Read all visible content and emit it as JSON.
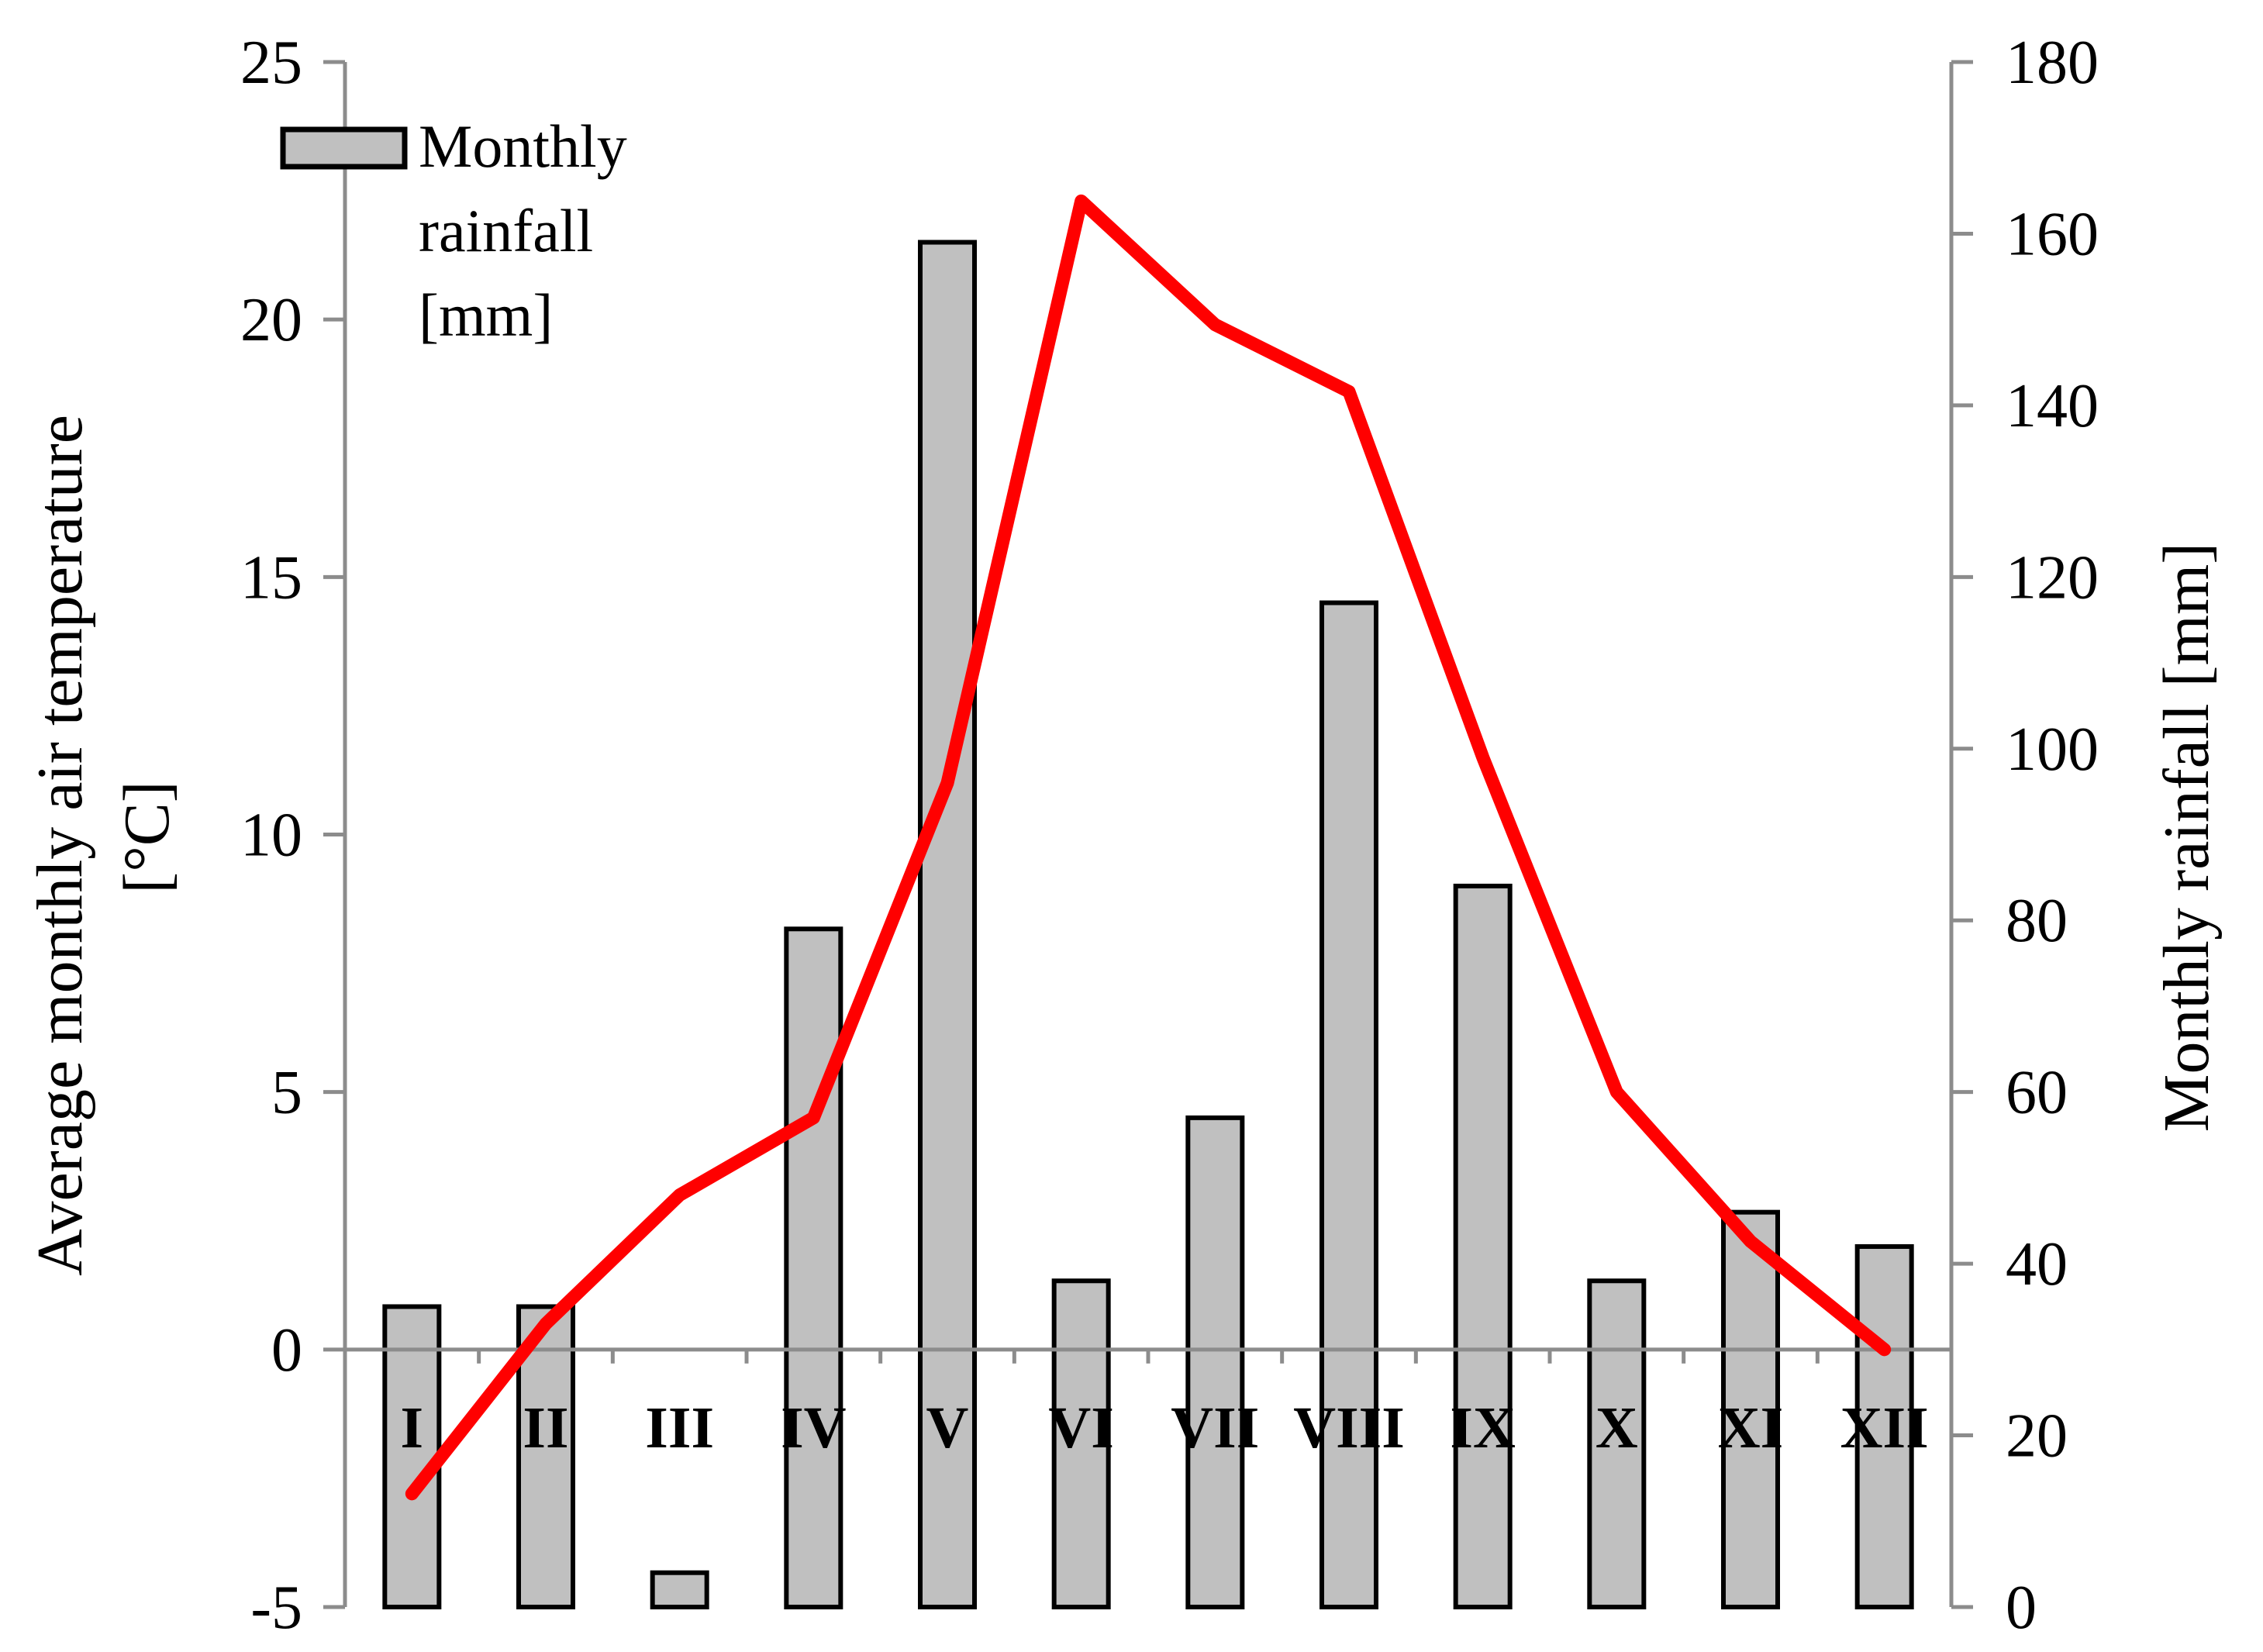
{
  "chart_data": {
    "type": "bar+line",
    "categories": [
      "I",
      "II",
      "III",
      "IV",
      "V",
      "VI",
      "VII",
      "VIII",
      "IX",
      "X",
      "XI",
      "XII"
    ],
    "series": [
      {
        "name": "Monthly rainfall [mm]",
        "kind": "bar",
        "axis": "right",
        "color": "#c0c0c0",
        "edge_color": "#000000",
        "values": [
          35,
          35,
          4,
          79,
          159,
          38,
          57,
          117,
          84,
          38,
          46,
          42
        ]
      },
      {
        "name": "Average monthly air temperature [°C]",
        "kind": "line",
        "axis": "left",
        "color": "#ff0000",
        "values": [
          -2.8,
          0.5,
          3.0,
          4.5,
          11.0,
          22.3,
          19.9,
          18.6,
          11.5,
          5.0,
          2.1,
          0.0
        ]
      }
    ],
    "left_axis": {
      "label": "Average monthly air temperature [°C]",
      "ylim": [
        -5,
        25
      ],
      "ticks": [
        -5,
        0,
        5,
        10,
        15,
        20,
        25
      ],
      "tick_labels": [
        "-5",
        "0",
        "5",
        "10",
        "15",
        "20",
        "25"
      ]
    },
    "right_axis": {
      "label": "Monthly rainfall [mm]",
      "ylim": [
        0,
        180
      ],
      "ticks": [
        0,
        20,
        40,
        60,
        80,
        100,
        120,
        140,
        160,
        180
      ],
      "tick_labels": [
        "0",
        "20",
        "40",
        "60",
        "80",
        "100",
        "120",
        "140",
        "160",
        "180"
      ]
    },
    "legend": {
      "position": "top-left",
      "entries": [
        {
          "label_lines": [
            "Monthly",
            "rainfall",
            "[mm]"
          ],
          "series": "Monthly rainfall [mm]"
        }
      ]
    },
    "grid": false
  }
}
